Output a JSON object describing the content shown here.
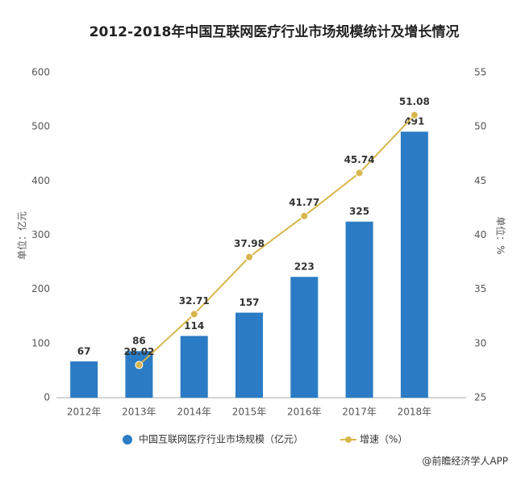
{
  "chart_data": {
    "type": "bar",
    "title": "2012-2018年中国互联网医疗行业市场规模统计及增长情况",
    "categories": [
      "2012年",
      "2013年",
      "2014年",
      "2015年",
      "2016年",
      "2017年",
      "2018年"
    ],
    "series": [
      {
        "name": "中国互联网医疗行业市场规模（亿元）",
        "type": "bar",
        "color": "#2b7cc4",
        "values": [
          67,
          86,
          114,
          157,
          223,
          325,
          491
        ]
      },
      {
        "name": "增速（%）",
        "type": "line",
        "axis": "y2",
        "color": "#d8b64c",
        "values": [
          null,
          28.02,
          32.71,
          37.98,
          41.77,
          45.74,
          51.08
        ]
      }
    ],
    "ylabel": "单位：亿元",
    "y2label": "单位：%",
    "ylim": [
      0,
      600
    ],
    "yticks": [
      0,
      100,
      200,
      300,
      400,
      500,
      600
    ],
    "y2lim": [
      25,
      55
    ],
    "y2ticks": [
      25,
      30,
      35,
      40,
      45,
      50,
      55
    ],
    "source": "@前瞻经济学人APP"
  }
}
